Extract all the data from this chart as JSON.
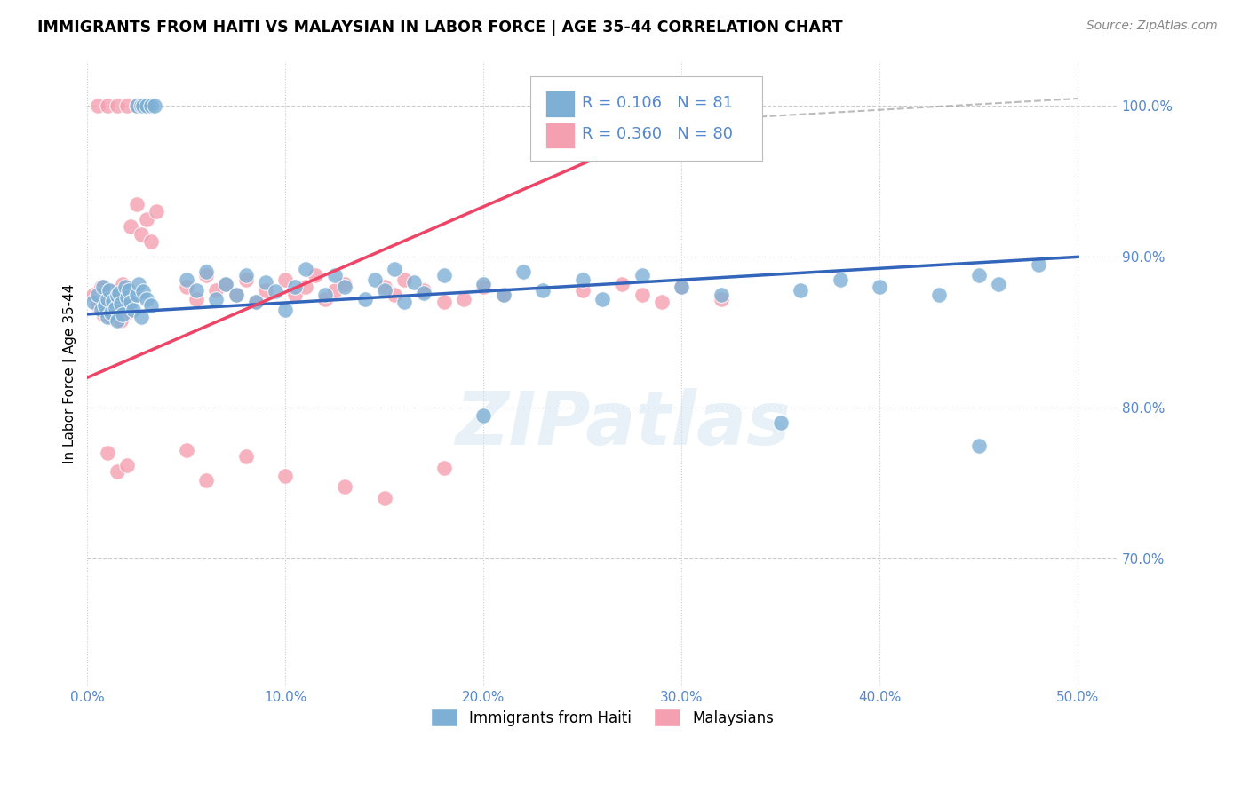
{
  "title": "IMMIGRANTS FROM HAITI VS MALAYSIAN IN LABOR FORCE | AGE 35-44 CORRELATION CHART",
  "source": "Source: ZipAtlas.com",
  "ylabel": "In Labor Force | Age 35-44",
  "xlim": [
    0.0,
    0.52
  ],
  "ylim": [
    0.615,
    1.03
  ],
  "ytick_right_labels": [
    "100.0%",
    "90.0%",
    "80.0%",
    "70.0%"
  ],
  "ytick_right_values": [
    1.0,
    0.9,
    0.8,
    0.7
  ],
  "xtick_labels": [
    "0.0%",
    "10.0%",
    "20.0%",
    "30.0%",
    "40.0%",
    "50.0%"
  ],
  "xtick_values": [
    0.0,
    0.1,
    0.2,
    0.3,
    0.4,
    0.5
  ],
  "legend_R_blue": "0.106",
  "legend_N_blue": "81",
  "legend_R_pink": "0.360",
  "legend_N_pink": "80",
  "blue_color": "#7EB0D5",
  "pink_color": "#F4A0B0",
  "blue_line_color": "#3366BB",
  "pink_line_color": "#EE4466",
  "tick_color": "#5588CC",
  "watermark": "ZIPatlas",
  "blue_line_x0": 0.0,
  "blue_line_y0": 0.862,
  "blue_line_x1": 0.5,
  "blue_line_y1": 0.9,
  "pink_line_x0": 0.0,
  "pink_line_y0": 0.82,
  "pink_line_x1": 0.3,
  "pink_line_y1": 0.99,
  "dash_line_x0": 0.3,
  "dash_line_y0": 0.99,
  "dash_line_x1": 0.5,
  "dash_line_y1": 1.005
}
